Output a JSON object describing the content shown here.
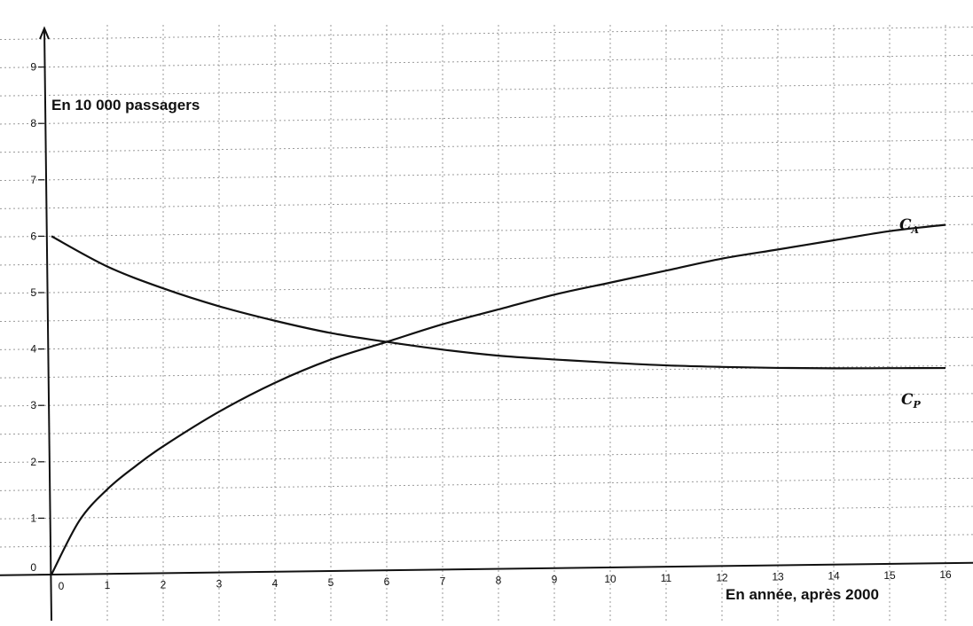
{
  "chart_data": {
    "type": "line",
    "xlabel": "En année, après 2000",
    "ylabel": "En 10 000 passagers",
    "xlim": [
      0,
      16
    ],
    "ylim": [
      0,
      9
    ],
    "grid": true,
    "x_ticks": [
      "0",
      "1",
      "2",
      "3",
      "4",
      "5",
      "6",
      "7",
      "8",
      "9",
      "10",
      "11",
      "12",
      "13",
      "14",
      "15",
      "16"
    ],
    "y_ticks": [
      "0",
      "1",
      "2",
      "3",
      "4",
      "5",
      "6",
      "7",
      "8",
      "9"
    ],
    "series": [
      {
        "name": "C",
        "subscript": "A",
        "color": "#111111",
        "x": [
          0,
          0.5,
          1,
          1.5,
          2,
          3,
          4,
          5,
          6,
          7,
          8,
          9,
          10,
          11,
          12,
          13,
          14,
          15,
          16
        ],
        "y": [
          0,
          0.95,
          1.5,
          1.9,
          2.25,
          2.85,
          3.35,
          3.75,
          4.05,
          4.35,
          4.6,
          4.85,
          5.05,
          5.25,
          5.45,
          5.6,
          5.75,
          5.9,
          6.0
        ]
      },
      {
        "name": "C",
        "subscript": "P",
        "color": "#111111",
        "x": [
          0,
          1,
          2,
          3,
          4,
          5,
          6,
          7,
          8,
          9,
          10,
          11,
          12,
          13,
          14,
          15,
          16
        ],
        "y": [
          6.0,
          5.45,
          5.05,
          4.72,
          4.45,
          4.22,
          4.05,
          3.9,
          3.78,
          3.7,
          3.63,
          3.57,
          3.53,
          3.5,
          3.48,
          3.47,
          3.46
        ]
      }
    ]
  }
}
